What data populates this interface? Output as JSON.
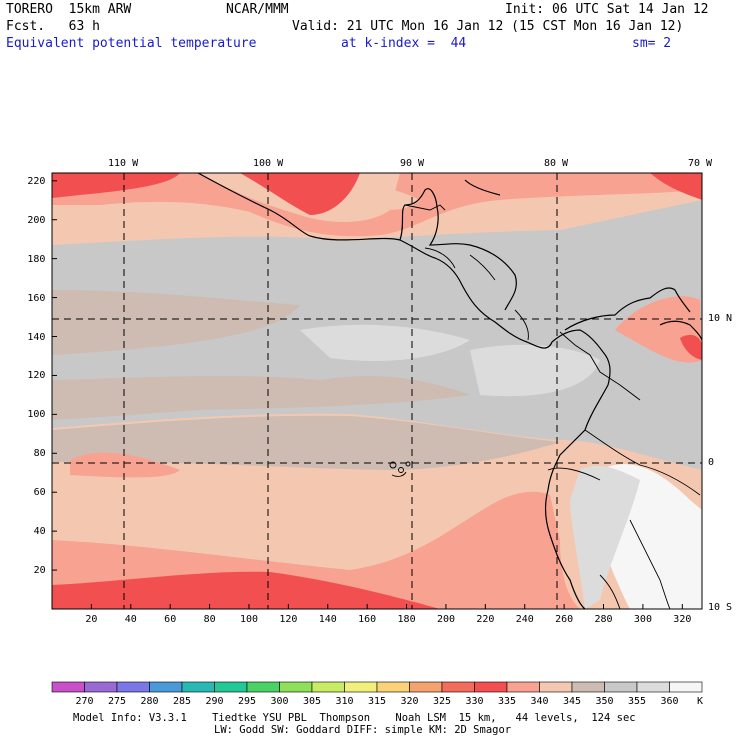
{
  "header": {
    "model": "TORERO  15km ARW",
    "org": "NCAR/MMM",
    "init": "Init: 06 UTC Sat 14 Jan 12",
    "fcst": "Fcst.   63 h",
    "valid": "Valid: 21 UTC Mon 16 Jan 12 (15 CST Mon 16 Jan 12)",
    "field": "Equivalent potential temperature",
    "level": "at k-index =  44",
    "smooth": "sm= 2"
  },
  "map": {
    "lon_labels": [
      "110 W",
      "100 W",
      "90 W",
      "80 W",
      "70 W"
    ],
    "lat_labels": [
      "10 N",
      "0",
      "10 S"
    ],
    "x_ticks": [
      "20",
      "40",
      "60",
      "80",
      "100",
      "120",
      "140",
      "160",
      "180",
      "200",
      "220",
      "240",
      "260",
      "280",
      "300",
      "320"
    ],
    "y_ticks": [
      "20",
      "40",
      "60",
      "80",
      "100",
      "120",
      "140",
      "160",
      "180",
      "200",
      "220"
    ]
  },
  "colorbar": {
    "levels": [
      "270",
      "275",
      "280",
      "285",
      "290",
      "295",
      "300",
      "305",
      "310",
      "315",
      "320",
      "325",
      "330",
      "335",
      "340",
      "345",
      "350",
      "355",
      "360"
    ],
    "unit": "K",
    "colors": [
      "#c850c8",
      "#9a6ad4",
      "#7a78e6",
      "#4a9ad8",
      "#2ab8b4",
      "#22c896",
      "#4ad266",
      "#8ee05a",
      "#c8ec64",
      "#f0f07a",
      "#fad278",
      "#f4a26e",
      "#f46c5c",
      "#f25050",
      "#f8a292",
      "#f4c8b0",
      "#cebcb2",
      "#c8c8c8",
      "#dcdcdc",
      "#f6f6f6"
    ]
  },
  "footer": {
    "line1": "Model Info: V3.3.1    Tiedtke YSU PBL  Thompson    Noah LSM  15 km,   44 levels,  124 sec",
    "line2": "LW: Godd SW: Goddard DIFF: simple KM: 2D Smagor"
  }
}
